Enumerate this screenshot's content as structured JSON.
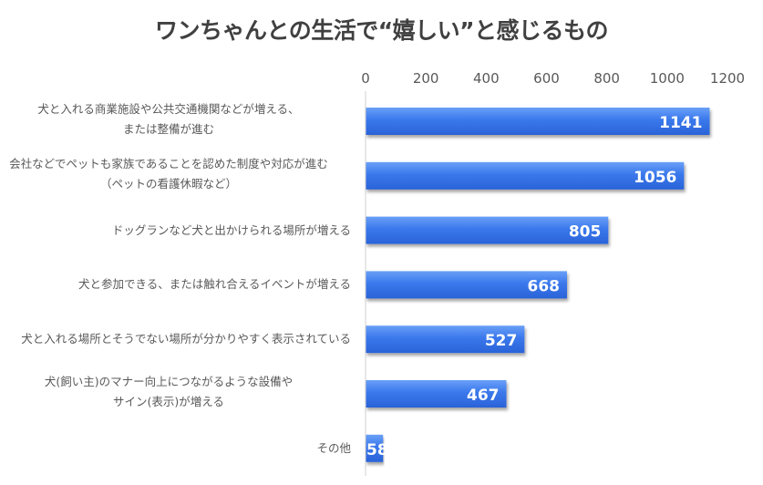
{
  "chart_data": {
    "type": "bar",
    "orientation": "horizontal",
    "title": "ワンちゃんとの生活で“嬉しい”と感じるもの",
    "categories": [
      [
        "犬と入れる商業施設や公共交通機関などが増える、",
        "または整備が進む"
      ],
      [
        "会社などでペットも家族であることを認めた制度や対応が進む",
        "（ペットの看護休暇など）"
      ],
      [
        "ドッグランなど犬と出かけられる場所が増える"
      ],
      [
        "犬と参加できる、または触れ合えるイベントが増える"
      ],
      [
        "犬と入れる場所とそうでない場所が分かりやすく表示されている"
      ],
      [
        "犬(飼い主)のマナー向上につながるような設備や",
        "サイン(表示)が増える"
      ],
      [
        "その他"
      ]
    ],
    "values": [
      1141,
      1056,
      805,
      668,
      527,
      467,
      58
    ],
    "xlim": [
      0,
      1200
    ],
    "xticks": [
      0,
      200,
      400,
      600,
      800,
      1000,
      1200
    ],
    "xaxis_position": "top",
    "grid": false,
    "legend": "none",
    "data_labels": true,
    "colors": {
      "bar": "#2f6fe6",
      "bar_light": "#5b95f5",
      "label": "#ffffff",
      "text": "#595959",
      "title": "#404040"
    }
  }
}
